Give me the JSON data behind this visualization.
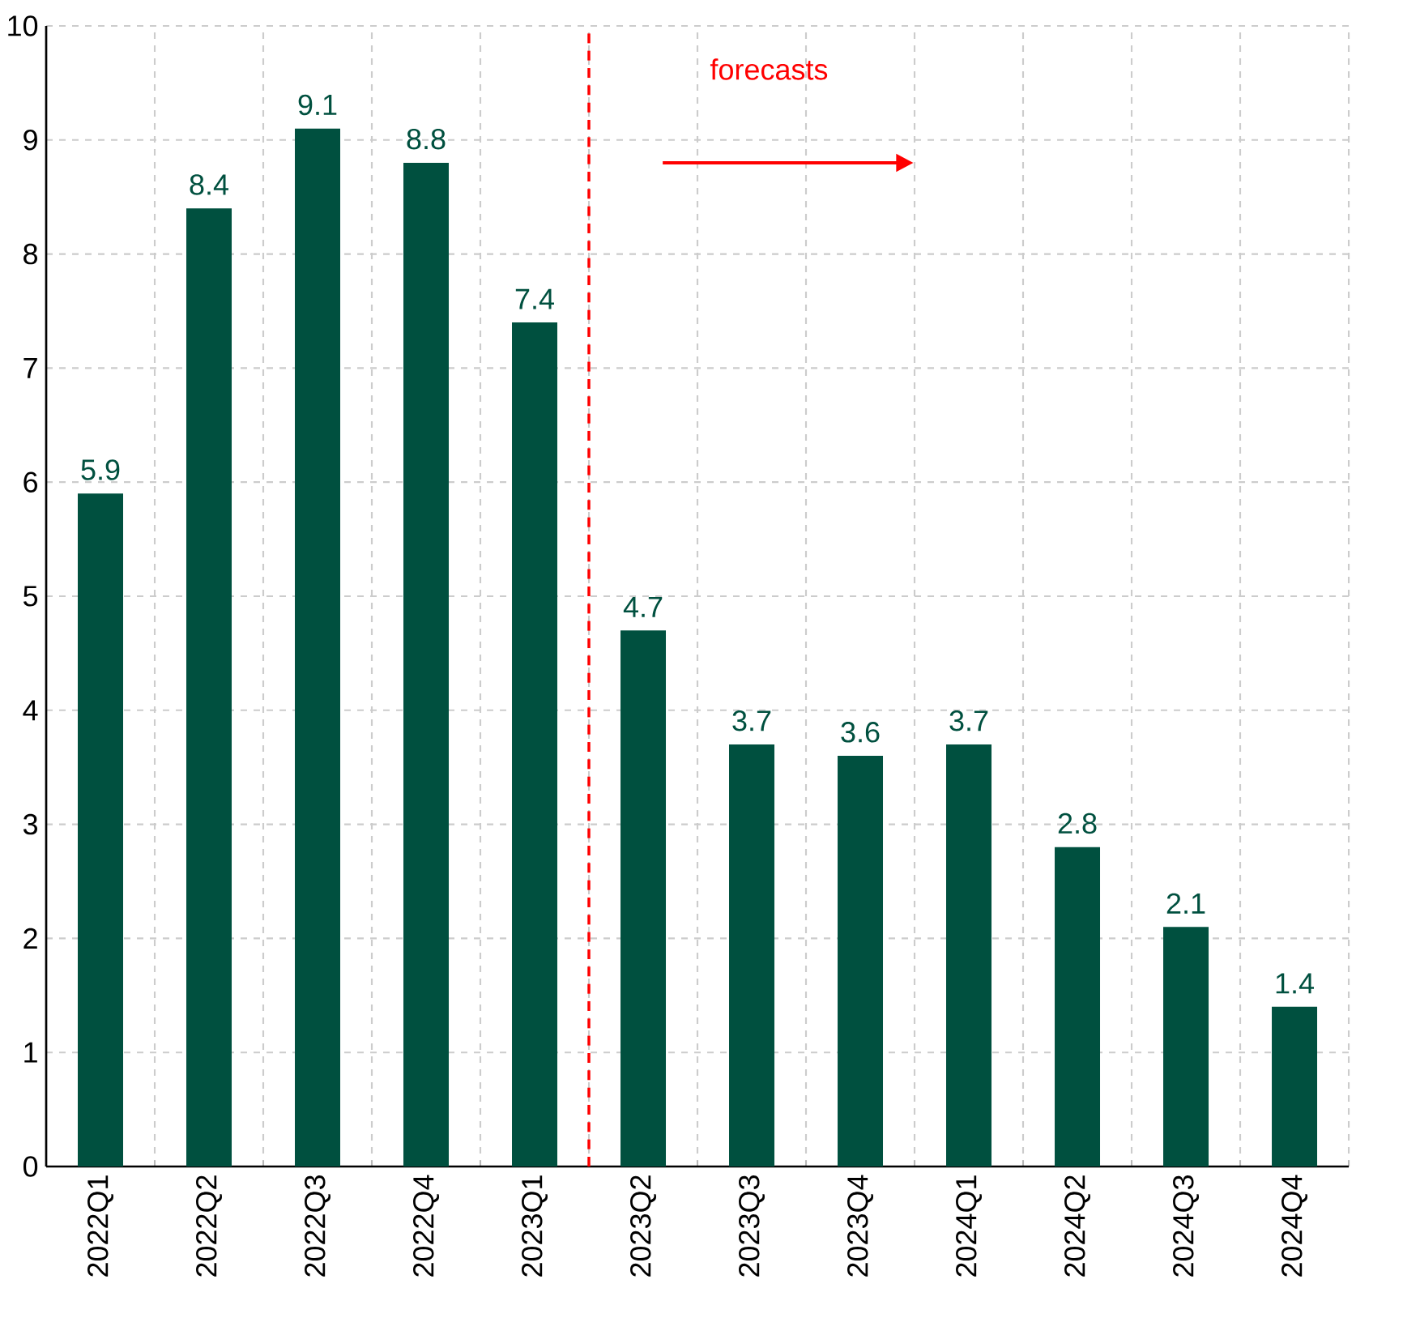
{
  "chart_data": {
    "type": "bar",
    "categories": [
      "2022Q1",
      "2022Q2",
      "2022Q3",
      "2022Q4",
      "2023Q1",
      "2023Q2",
      "2023Q3",
      "2023Q4",
      "2024Q1",
      "2024Q2",
      "2024Q3",
      "2024Q4"
    ],
    "values": [
      5.9,
      8.4,
      9.1,
      8.8,
      7.4,
      4.7,
      3.7,
      3.6,
      3.7,
      2.8,
      2.1,
      1.4
    ],
    "color": "#00503f",
    "ylim": [
      0,
      10
    ],
    "yticks": [
      0,
      1,
      2,
      3,
      4,
      5,
      6,
      7,
      8,
      9,
      10
    ],
    "grid": true,
    "data_labels": true,
    "annotations": [
      "forecasts"
    ]
  }
}
